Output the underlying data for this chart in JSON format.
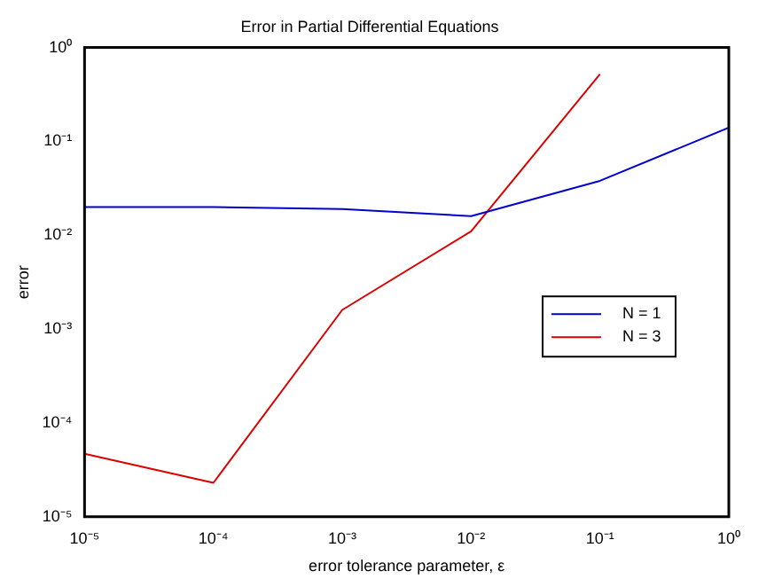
{
  "chart_data": {
    "type": "line",
    "title": "Error in Partial Differential Equations",
    "xlabel": "error tolerance parameter, ε",
    "ylabel": "error",
    "log": "xy",
    "grid": false,
    "legend": "right",
    "line_style": "solid",
    "marker": "none",
    "xlim": [
      1e-05,
      1
    ],
    "ylim": [
      1e-05,
      1
    ],
    "xticks": [
      {
        "value": 1e-05,
        "label": "10⁻⁵"
      },
      {
        "value": 0.0001,
        "label": "10⁻⁴"
      },
      {
        "value": 0.001,
        "label": "10⁻³"
      },
      {
        "value": 0.01,
        "label": "10⁻²"
      },
      {
        "value": 0.1,
        "label": "10⁻¹"
      },
      {
        "value": 1,
        "label": "10⁰"
      }
    ],
    "yticks": [
      {
        "value": 1e-05,
        "label": "10⁻⁵"
      },
      {
        "value": 0.0001,
        "label": "10⁻⁴"
      },
      {
        "value": 0.001,
        "label": "10⁻³"
      },
      {
        "value": 0.01,
        "label": "10⁻²"
      },
      {
        "value": 0.1,
        "label": "10⁻¹"
      },
      {
        "value": 1,
        "label": "10⁰"
      }
    ],
    "x": [
      1e-05,
      0.0001,
      0.001,
      0.01,
      0.1,
      1
    ],
    "series": [
      {
        "name": "N = 1",
        "color": "#0000cc",
        "values": [
          0.02,
          0.02,
          0.019,
          0.016,
          0.038,
          0.14
        ]
      },
      {
        "name": "N = 3",
        "color": "#dd0000",
        "values": [
          4.7e-05,
          2.3e-05,
          0.0016,
          0.011,
          0.52,
          null
        ]
      }
    ]
  }
}
